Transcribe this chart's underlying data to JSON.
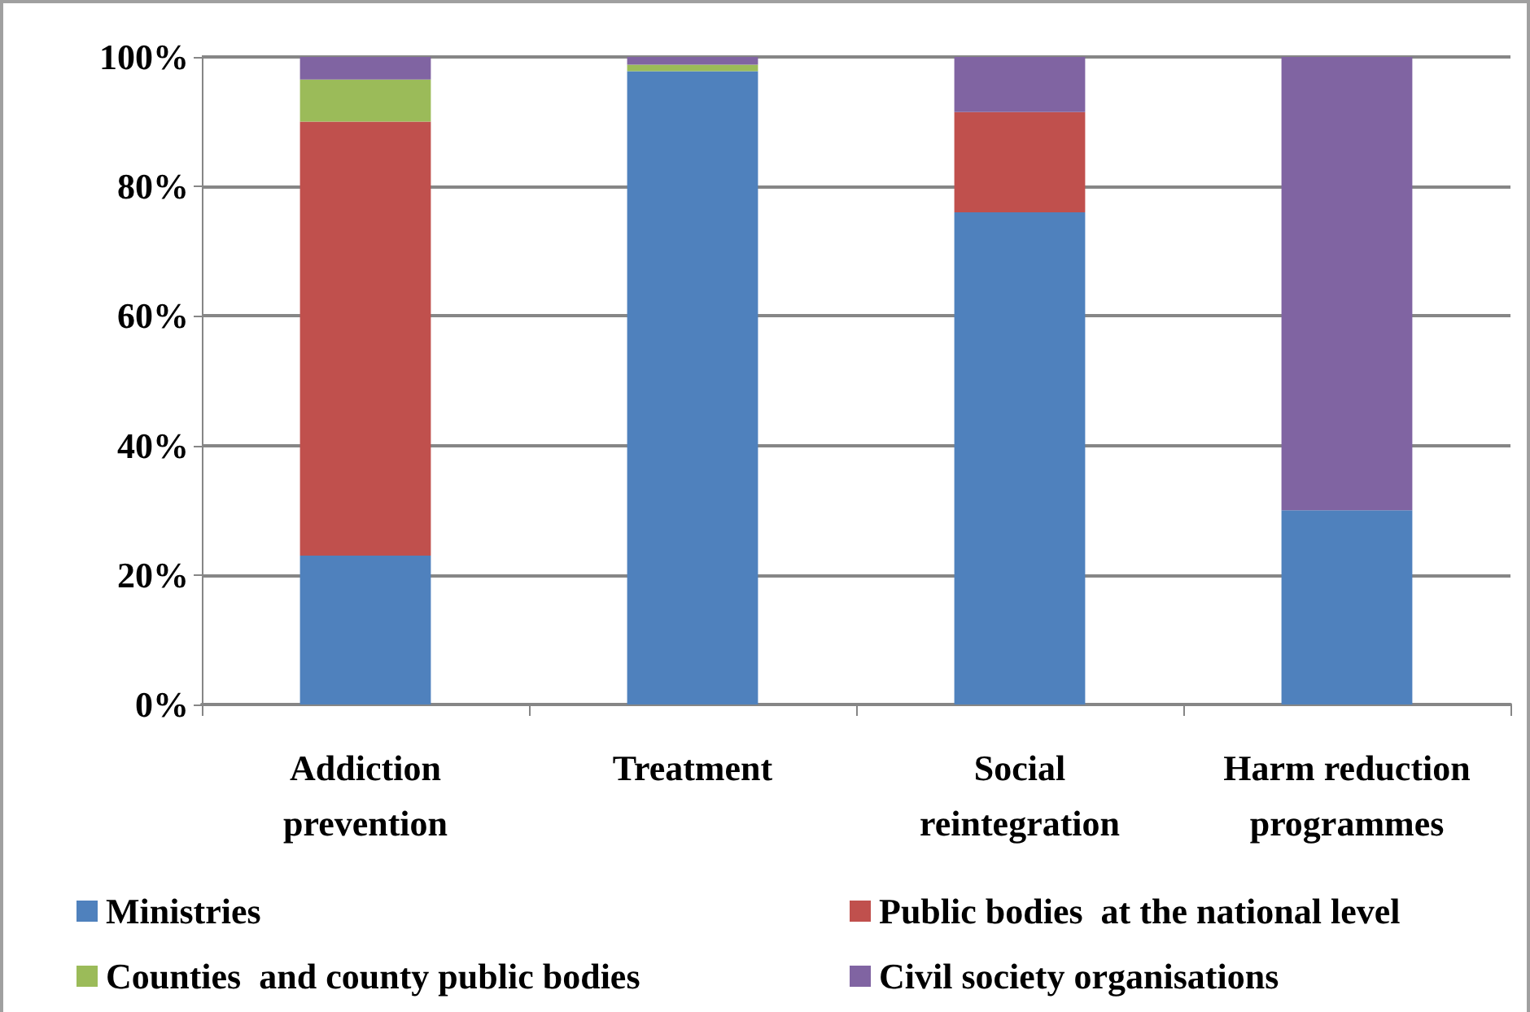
{
  "chart_data": {
    "type": "bar",
    "stacked": true,
    "categories": [
      "Addiction prevention",
      "Treatment",
      "Social reintegration",
      "Harm reduction programmes"
    ],
    "series": [
      {
        "name": "Ministries",
        "color": "#4f81bd",
        "values": [
          23,
          97.8,
          76,
          30
        ]
      },
      {
        "name": "Public bodies  at the national level",
        "color": "#c0504d",
        "values": [
          67,
          0,
          15.5,
          0
        ]
      },
      {
        "name": "Counties  and county public bodies",
        "color": "#9bbb59",
        "values": [
          6.5,
          1,
          0,
          0
        ]
      },
      {
        "name": "Civil society organisations",
        "color": "#8064a2",
        "values": [
          3.5,
          1.2,
          8.5,
          70
        ]
      }
    ],
    "ylim": [
      0,
      100
    ],
    "yticks": [
      {
        "value": 0,
        "label": "0%"
      },
      {
        "value": 20,
        "label": "20%"
      },
      {
        "value": 40,
        "label": "40%"
      },
      {
        "value": 60,
        "label": "60%"
      },
      {
        "value": 80,
        "label": "80%"
      },
      {
        "value": 100,
        "label": "100%"
      }
    ],
    "grid": "y",
    "legend": "bottom"
  }
}
